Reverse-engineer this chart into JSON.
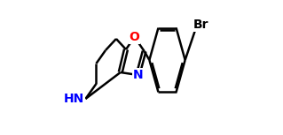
{
  "background_color": "#ffffff",
  "bond_color": "#000000",
  "atom_colors": {
    "O": "#ff0000",
    "N": "#0000ff",
    "Br": "#000000"
  },
  "bond_width": 1.8,
  "font_size": 10
}
